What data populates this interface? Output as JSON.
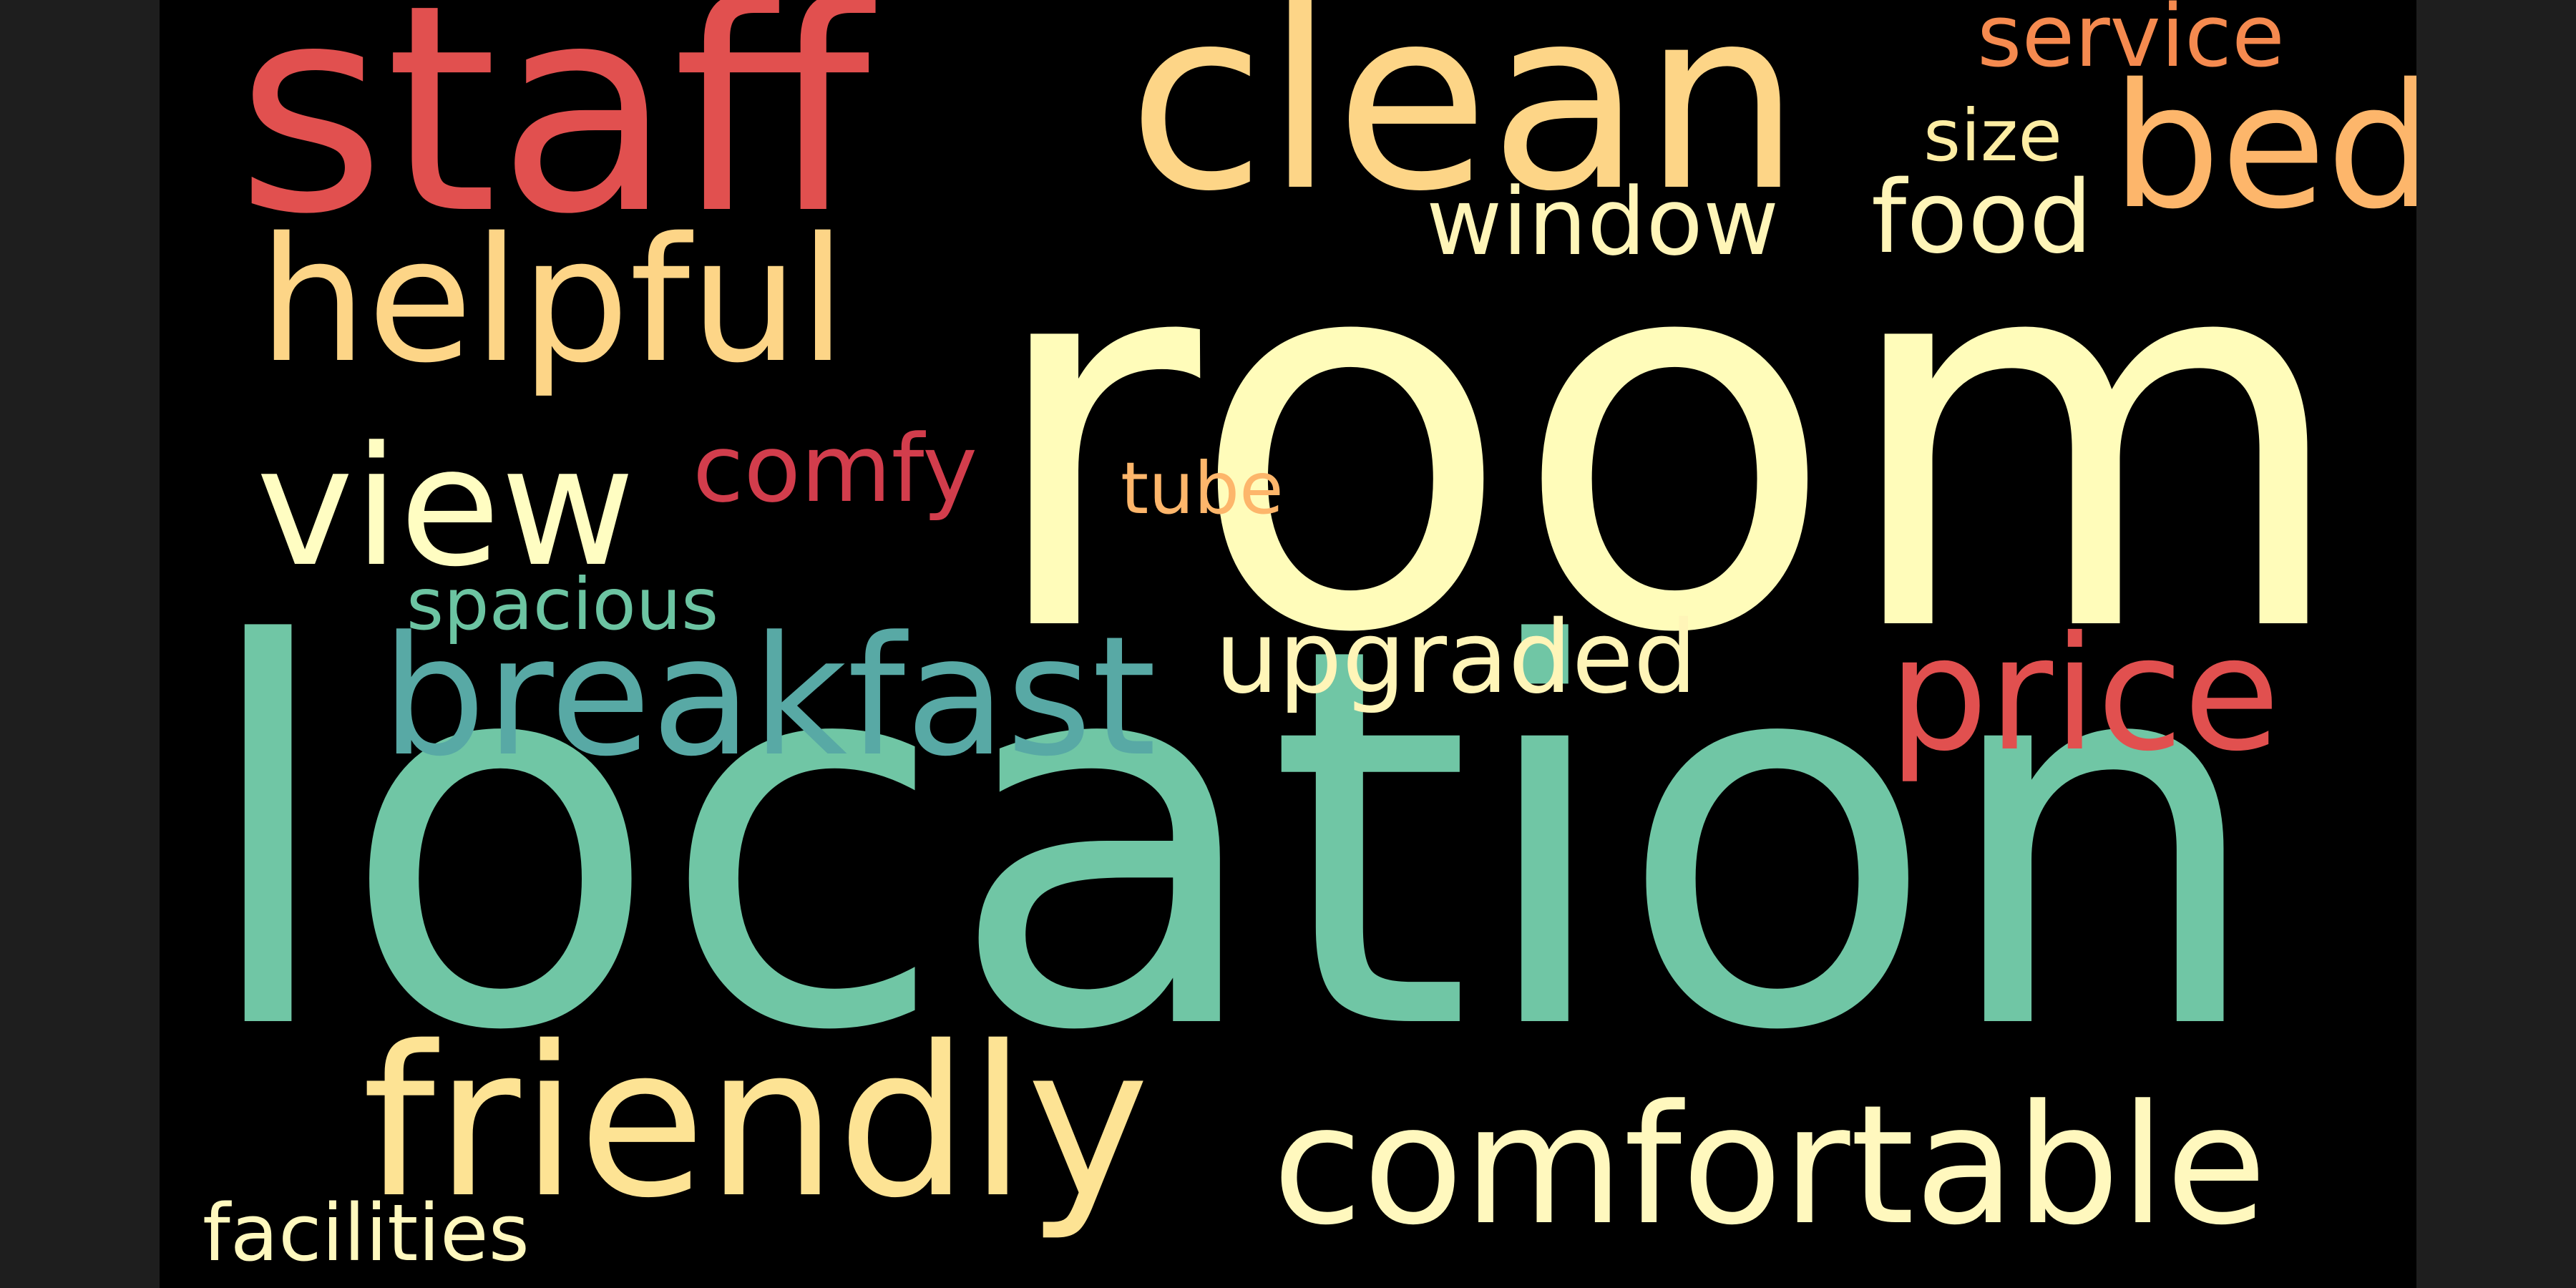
{
  "words": [
    {
      "id": "room",
      "text": "room",
      "color": "#FFFCBA"
    },
    {
      "id": "location",
      "text": "location",
      "color": "#70C6A5"
    },
    {
      "id": "staff",
      "text": "staff",
      "color": "#E1504F"
    },
    {
      "id": "clean",
      "text": "clean",
      "color": "#FDD587"
    },
    {
      "id": "service",
      "text": "service",
      "color": "#F58A4F"
    },
    {
      "id": "bed",
      "text": "bed",
      "color": "#FDB66B"
    },
    {
      "id": "size",
      "text": "size",
      "color": "#FEEDA3"
    },
    {
      "id": "window",
      "text": "window",
      "color": "#FFF5B8"
    },
    {
      "id": "food",
      "text": "food",
      "color": "#FFF5B8"
    },
    {
      "id": "helpful",
      "text": "helpful",
      "color": "#FDD587"
    },
    {
      "id": "view",
      "text": "view",
      "color": "#FFFDC2"
    },
    {
      "id": "comfy",
      "text": "comfy",
      "color": "#D23D4C"
    },
    {
      "id": "tube",
      "text": "tube",
      "color": "#FDB66B"
    },
    {
      "id": "spacious",
      "text": "spacious",
      "color": "#6CC4A2"
    },
    {
      "id": "breakfast",
      "text": "breakfast",
      "color": "#58A9A5"
    },
    {
      "id": "upgraded",
      "text": "upgraded",
      "color": "#FFF5B8"
    },
    {
      "id": "price",
      "text": "price",
      "color": "#E1504F"
    },
    {
      "id": "friendly",
      "text": "friendly",
      "color": "#FDE394"
    },
    {
      "id": "comfortable",
      "text": "comfortable",
      "color": "#FFF8BE"
    },
    {
      "id": "facilities",
      "text": "facilities",
      "color": "#FFF8BE"
    }
  ]
}
